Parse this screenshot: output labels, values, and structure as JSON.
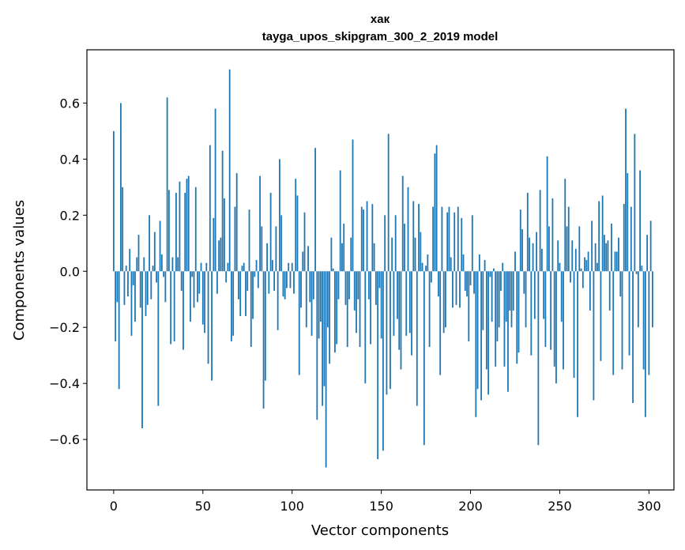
{
  "chart_data": {
    "type": "bar",
    "title": "хак",
    "subtitle": "tayga_upos_skipgram_300_2_2019 model",
    "xlabel": "Vector components",
    "ylabel": "Components values",
    "xlim": [
      -15,
      314
    ],
    "ylim": [
      -0.78,
      0.79
    ],
    "xticks": [
      0,
      50,
      100,
      150,
      200,
      250,
      300
    ],
    "yticks": [
      -0.6,
      -0.4,
      -0.2,
      0.0,
      0.2,
      0.4,
      0.6
    ],
    "ytick_labels": [
      "−0.6",
      "−0.4",
      "−0.2",
      "0.0",
      "0.2",
      "0.4",
      "0.6"
    ],
    "bar_color": "#1f77b4",
    "values": [
      0.5,
      -0.25,
      -0.11,
      -0.42,
      0.6,
      0.3,
      -0.12,
      0.02,
      -0.09,
      0.08,
      -0.23,
      -0.05,
      -0.18,
      0.05,
      0.13,
      -0.13,
      -0.56,
      0.05,
      -0.16,
      -0.12,
      0.2,
      -0.1,
      0.02,
      0.14,
      -0.04,
      -0.48,
      0.18,
      0.06,
      -0.02,
      -0.11,
      0.62,
      0.29,
      -0.26,
      0.05,
      -0.25,
      0.28,
      0.05,
      0.32,
      -0.07,
      -0.28,
      0.28,
      0.33,
      0.34,
      -0.18,
      -0.02,
      -0.13,
      0.3,
      -0.11,
      -0.08,
      0.03,
      -0.19,
      -0.22,
      0.03,
      -0.33,
      0.45,
      -0.39,
      0.19,
      0.58,
      -0.08,
      0.11,
      0.12,
      0.43,
      0.26,
      -0.04,
      0.03,
      0.72,
      -0.25,
      -0.23,
      0.23,
      0.35,
      -0.1,
      -0.16,
      0.02,
      0.03,
      -0.16,
      -0.07,
      0.22,
      -0.27,
      -0.17,
      -0.02,
      0.04,
      -0.06,
      0.34,
      0.16,
      -0.49,
      -0.39,
      0.1,
      -0.08,
      0.28,
      0.04,
      -0.07,
      0.16,
      -0.21,
      0.4,
      0.2,
      -0.09,
      -0.1,
      -0.06,
      0.03,
      -0.06,
      0.03,
      -0.08,
      0.33,
      0.27,
      -0.37,
      -0.13,
      0.07,
      0.21,
      -0.2,
      0.09,
      -0.11,
      -0.23,
      -0.1,
      0.44,
      -0.53,
      -0.24,
      -0.18,
      -0.48,
      -0.41,
      -0.7,
      -0.2,
      -0.33,
      0.12,
      0.01,
      -0.29,
      -0.26,
      -0.1,
      0.36,
      0.1,
      0.17,
      -0.12,
      -0.27,
      -0.1,
      0.12,
      0.47,
      -0.14,
      -0.22,
      -0.1,
      -0.27,
      0.23,
      0.22,
      -0.4,
      0.25,
      -0.1,
      -0.26,
      0.24,
      0.1,
      -0.12,
      -0.67,
      -0.06,
      -0.24,
      -0.64,
      0.2,
      -0.44,
      0.49,
      -0.42,
      0.12,
      -0.23,
      0.2,
      -0.17,
      -0.28,
      -0.35,
      0.34,
      0.17,
      -0.23,
      0.3,
      -0.22,
      -0.3,
      0.25,
      0.12,
      -0.48,
      0.24,
      0.14,
      0.03,
      -0.62,
      0.02,
      0.06,
      -0.27,
      -0.04,
      0.23,
      0.42,
      0.45,
      -0.09,
      -0.37,
      0.23,
      -0.22,
      -0.2,
      0.21,
      0.23,
      0.05,
      -0.13,
      0.21,
      -0.12,
      0.23,
      -0.13,
      0.19,
      0.06,
      -0.07,
      -0.09,
      -0.25,
      -0.05,
      0.2,
      -0.08,
      -0.52,
      -0.42,
      0.06,
      -0.46,
      -0.21,
      0.04,
      -0.35,
      -0.44,
      -0.02,
      -0.18,
      0.01,
      -0.34,
      -0.25,
      -0.2,
      -0.07,
      0.03,
      -0.34,
      -0.18,
      -0.43,
      -0.14,
      -0.2,
      -0.14,
      0.07,
      -0.33,
      -0.29,
      0.22,
      0.15,
      -0.08,
      -0.2,
      0.28,
      0.12,
      -0.3,
      0.1,
      -0.17,
      0.14,
      -0.62,
      0.29,
      0.08,
      -0.17,
      -0.27,
      0.41,
      0.16,
      -0.28,
      0.26,
      -0.34,
      -0.4,
      0.11,
      0.03,
      -0.18,
      -0.35,
      0.33,
      0.16,
      0.23,
      -0.04,
      0.11,
      -0.38,
      0.08,
      -0.52,
      0.16,
      0.01,
      -0.06,
      0.05,
      0.04,
      0.07,
      -0.14,
      0.18,
      -0.46,
      0.1,
      0.03,
      0.25,
      -0.32,
      0.27,
      0.13,
      0.1,
      0.11,
      -0.14,
      0.17,
      -0.37,
      0.07,
      0.07,
      0.12,
      -0.09,
      -0.35,
      0.24,
      0.58,
      0.35,
      -0.3,
      0.23,
      -0.47,
      0.49,
      -0.01,
      -0.2,
      0.36,
      0.02,
      -0.35,
      -0.52,
      0.13,
      -0.37,
      0.18,
      -0.2
    ]
  }
}
